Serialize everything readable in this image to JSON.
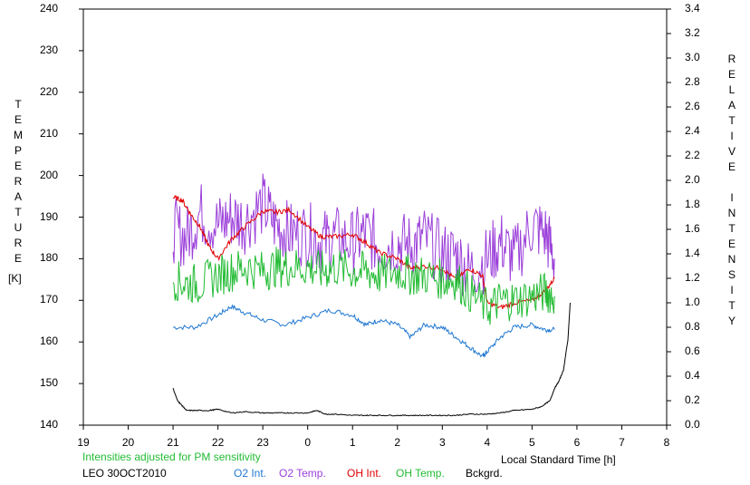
{
  "chart_data": {
    "type": "line",
    "x_ticks": [
      "19",
      "20",
      "21",
      "22",
      "23",
      "0",
      "1",
      "2",
      "3",
      "4",
      "5",
      "6",
      "7",
      "8"
    ],
    "xlabel": "Local Standard Time [h]",
    "ylabel_left": "TEMPERATURE",
    "ylabel_left_unit": "[K]",
    "ylabel_right": "RELATIVE INTENSITY",
    "ylim_left": [
      140,
      240
    ],
    "ylim_right": [
      0.0,
      3.4
    ],
    "y_left_ticks": [
      "140",
      "150",
      "160",
      "170",
      "180",
      "190",
      "200",
      "210",
      "220",
      "230",
      "240"
    ],
    "y_right_ticks": [
      "0.0",
      "0.2",
      "0.4",
      "0.6",
      "0.8",
      "1.0",
      "1.2",
      "1.4",
      "1.6",
      "1.8",
      "2.0",
      "2.2",
      "2.4",
      "2.6",
      "2.8",
      "3.0",
      "3.2",
      "3.4"
    ],
    "note": "Intensities adjusted for PM sensitivity",
    "station": "LEO 30OCT2010",
    "legend_position": "bottom",
    "series": [
      {
        "name": "O2 Int.",
        "color": "#1f77d0",
        "axis": "right",
        "x": [
          21.0,
          21.5,
          22.0,
          22.3,
          22.6,
          23.0,
          23.5,
          24.0,
          24.5,
          25.0,
          25.3,
          25.6,
          26.0,
          26.3,
          26.6,
          27.0,
          27.3,
          27.6,
          27.9,
          28.0,
          28.3,
          28.6,
          29.0,
          29.3,
          29.5
        ],
        "y": [
          0.8,
          0.8,
          0.9,
          0.97,
          0.92,
          0.86,
          0.82,
          0.88,
          0.94,
          0.9,
          0.82,
          0.86,
          0.82,
          0.72,
          0.82,
          0.8,
          0.72,
          0.64,
          0.56,
          0.6,
          0.72,
          0.8,
          0.82,
          0.78,
          0.78
        ]
      },
      {
        "name": "O2 Temp.",
        "color": "#9b3fd9",
        "axis": "left",
        "x": [
          21.0,
          21.3,
          21.6,
          22.0,
          22.3,
          22.6,
          23.0,
          23.3,
          23.6,
          24.0,
          24.3,
          24.6,
          25.0,
          25.3,
          25.6,
          26.0,
          26.3,
          26.6,
          27.0,
          27.3,
          27.6,
          28.0,
          28.3,
          28.6,
          29.0,
          29.3,
          29.5
        ],
        "y": [
          187,
          185,
          191,
          188,
          190,
          189,
          193,
          188,
          186,
          186,
          184,
          185,
          184,
          186,
          183,
          184,
          183,
          185,
          181,
          181,
          177,
          180,
          184,
          180,
          188,
          186,
          180
        ]
      },
      {
        "name": "OH Int.",
        "color": "#e00000",
        "axis": "right",
        "x": [
          21.0,
          21.2,
          21.4,
          21.6,
          21.8,
          22.0,
          22.3,
          22.6,
          23.0,
          23.3,
          23.6,
          24.0,
          24.3,
          24.6,
          25.0,
          25.3,
          25.6,
          26.0,
          26.3,
          26.6,
          27.0,
          27.3,
          27.6,
          27.9,
          28.0,
          28.3,
          28.6,
          29.0,
          29.3,
          29.5
        ],
        "y": [
          1.86,
          1.84,
          1.72,
          1.62,
          1.46,
          1.36,
          1.52,
          1.62,
          1.75,
          1.74,
          1.76,
          1.62,
          1.54,
          1.54,
          1.56,
          1.49,
          1.41,
          1.36,
          1.28,
          1.3,
          1.28,
          1.19,
          1.28,
          1.22,
          1.0,
          0.96,
          1.0,
          1.02,
          1.1,
          1.2
        ]
      },
      {
        "name": "OH Temp.",
        "color": "#22bb33",
        "axis": "left",
        "x": [
          21.0,
          21.3,
          21.6,
          22.0,
          22.3,
          22.6,
          23.0,
          23.3,
          23.6,
          24.0,
          24.3,
          24.6,
          25.0,
          25.3,
          25.6,
          26.0,
          26.3,
          26.6,
          27.0,
          27.3,
          27.6,
          28.0,
          28.3,
          28.6,
          29.0,
          29.3,
          29.5
        ],
        "y": [
          175,
          174,
          174,
          176,
          177,
          178,
          177,
          178,
          178,
          178,
          177,
          178,
          177,
          177,
          176,
          177,
          176,
          176,
          175,
          175,
          172,
          168,
          170,
          170,
          171,
          172,
          171
        ]
      },
      {
        "name": "Bckgrd.",
        "color": "#000000",
        "axis": "right",
        "x": [
          21.0,
          21.1,
          21.2,
          21.3,
          21.5,
          21.8,
          22.0,
          22.3,
          22.6,
          23.0,
          23.3,
          23.6,
          24.0,
          24.2,
          24.4,
          24.6,
          25.0,
          25.3,
          25.6,
          26.0,
          26.3,
          26.6,
          27.0,
          27.3,
          27.6,
          28.0,
          28.3,
          28.6,
          29.0,
          29.2,
          29.4,
          29.5,
          29.6,
          29.7,
          29.8,
          29.85
        ],
        "y": [
          0.3,
          0.2,
          0.16,
          0.12,
          0.12,
          0.12,
          0.13,
          0.1,
          0.11,
          0.1,
          0.1,
          0.1,
          0.1,
          0.12,
          0.09,
          0.09,
          0.08,
          0.08,
          0.08,
          0.08,
          0.08,
          0.08,
          0.08,
          0.08,
          0.09,
          0.09,
          0.1,
          0.12,
          0.13,
          0.15,
          0.2,
          0.3,
          0.36,
          0.45,
          0.7,
          1.0
        ]
      }
    ]
  }
}
